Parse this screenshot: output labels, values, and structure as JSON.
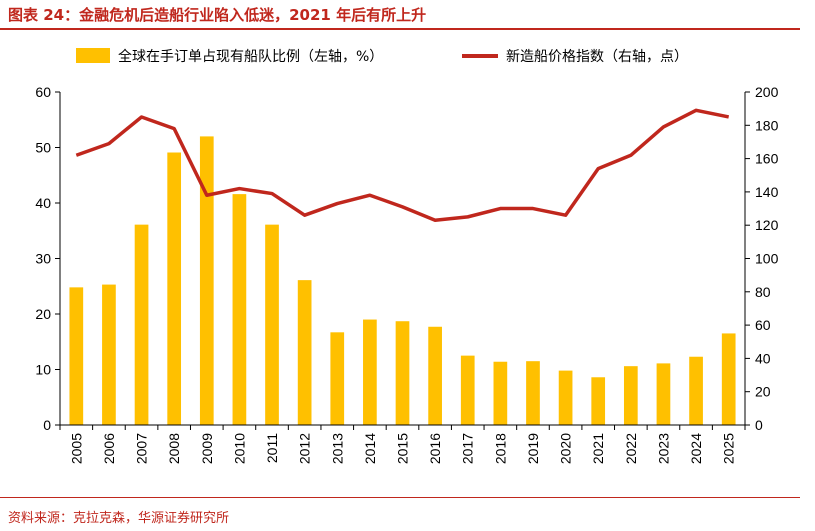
{
  "title": "图表 24：金融危机后造船行业陷入低迷，2021 年后有所上升",
  "source": "资料来源：克拉克森，华源证券研究所",
  "colors": {
    "bar": "#ffc000",
    "line": "#c0271d",
    "accent": "#c0271d"
  },
  "chart_data": {
    "type": "bar+line",
    "categories": [
      "2005",
      "2006",
      "2007",
      "2008",
      "2009",
      "2010",
      "2011",
      "2012",
      "2013",
      "2014",
      "2015",
      "2016",
      "2017",
      "2018",
      "2019",
      "2020",
      "2021",
      "2022",
      "2023",
      "2024",
      "2025"
    ],
    "series": [
      {
        "name": "全球在手订单占现有船队比例（左轴，%）",
        "type": "bar",
        "axis": "left",
        "values": [
          24.8,
          25.3,
          36.1,
          49.1,
          52.0,
          41.6,
          36.1,
          26.1,
          16.7,
          19.0,
          18.7,
          17.7,
          12.5,
          11.4,
          11.5,
          9.8,
          8.6,
          10.6,
          11.1,
          12.3,
          16.5
        ]
      },
      {
        "name": "新造船价格指数（右轴，点）",
        "type": "line",
        "axis": "right",
        "values": [
          162,
          169,
          185,
          178,
          138,
          142,
          139,
          126,
          133,
          138,
          131,
          123,
          125,
          130,
          130,
          126,
          154,
          162,
          179,
          189,
          185
        ]
      }
    ],
    "left_axis": {
      "min": 0,
      "max": 60,
      "ticks": [
        0,
        10,
        20,
        30,
        40,
        50,
        60
      ]
    },
    "right_axis": {
      "min": 0,
      "max": 200,
      "ticks": [
        0,
        20,
        40,
        60,
        80,
        100,
        120,
        140,
        160,
        180,
        200
      ]
    },
    "grid": false,
    "legend": "top",
    "xtick_rotation": -90
  }
}
